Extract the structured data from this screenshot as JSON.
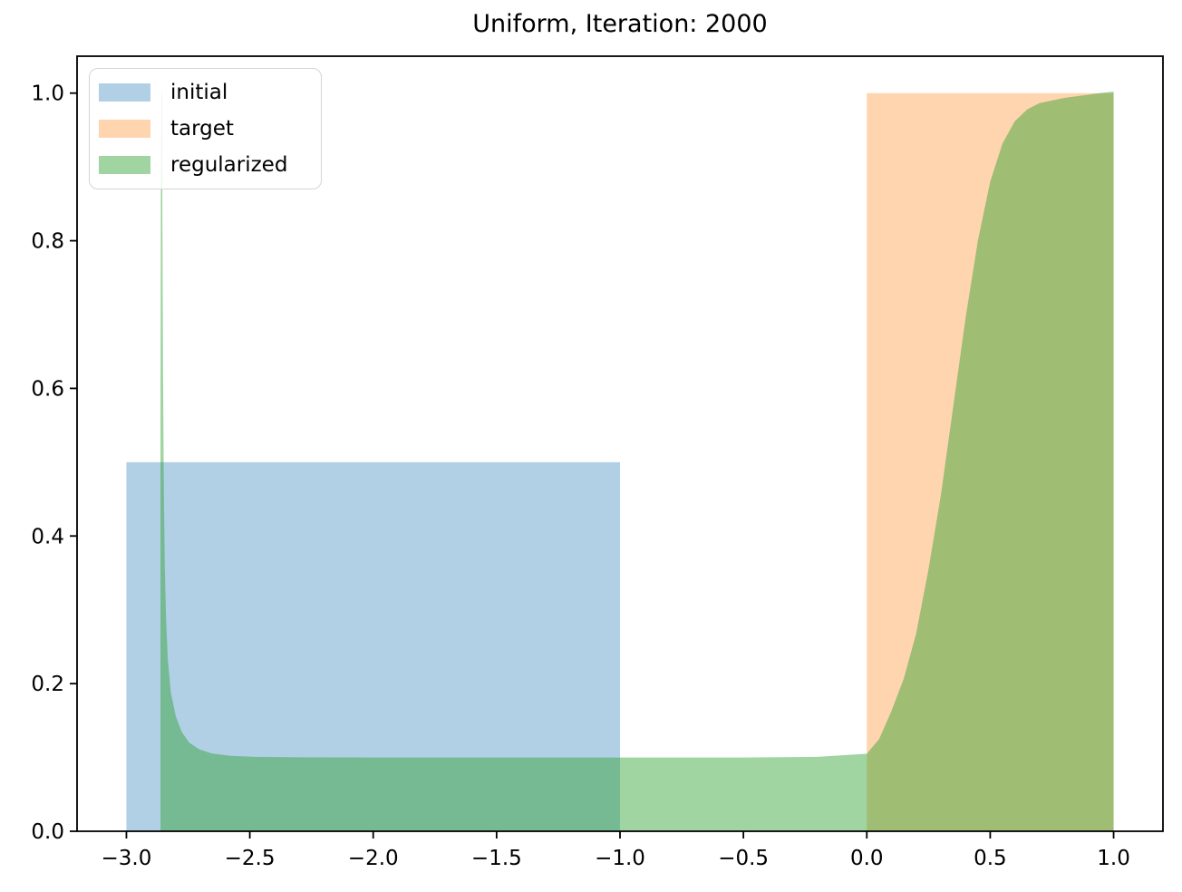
{
  "chart_data": {
    "type": "area",
    "title": "Uniform, Iteration: 2000",
    "xlabel": "",
    "ylabel": "",
    "xlim": [
      -3.2,
      1.2
    ],
    "ylim": [
      0.0,
      1.05
    ],
    "x_ticks": [
      -3.0,
      -2.5,
      -2.0,
      -1.5,
      -1.0,
      -0.5,
      0.0,
      0.5,
      1.0
    ],
    "x_tick_labels": [
      "−3.0",
      "−2.5",
      "−2.0",
      "−1.5",
      "−1.0",
      "−0.5",
      "0.0",
      "0.5",
      "1.0"
    ],
    "y_ticks": [
      0.0,
      0.2,
      0.4,
      0.6,
      0.8,
      1.0
    ],
    "y_tick_labels": [
      "0.0",
      "0.2",
      "0.4",
      "0.6",
      "0.8",
      "1.0"
    ],
    "grid": false,
    "legend_position": "upper-left",
    "axis_color": "#000000",
    "series": [
      {
        "name": "initial",
        "base_color": "#1f77b4",
        "fill": "rgba(31,119,180,0.35)",
        "points": [
          [
            -3.0,
            0.0
          ],
          [
            -3.0,
            0.5
          ],
          [
            -1.0,
            0.5
          ],
          [
            -1.0,
            0.0
          ]
        ]
      },
      {
        "name": "target",
        "base_color": "#ff7f0e",
        "fill": "rgba(255,127,14,0.33)",
        "points": [
          [
            0.0,
            0.0
          ],
          [
            0.0,
            1.0
          ],
          [
            1.0,
            1.0
          ],
          [
            1.0,
            0.0
          ]
        ]
      },
      {
        "name": "regularized",
        "base_color": "#2ca02c",
        "fill": "rgba(44,160,44,0.45)",
        "points": [
          [
            -2.862,
            0.0
          ],
          [
            -2.862,
            0.55
          ],
          [
            -2.8605,
            0.85
          ],
          [
            -2.8585,
            1.003
          ],
          [
            -2.856,
            1.003
          ],
          [
            -2.854,
            0.82
          ],
          [
            -2.8515,
            0.62
          ],
          [
            -2.8485,
            0.47
          ],
          [
            -2.8445,
            0.36
          ],
          [
            -2.8395,
            0.29
          ],
          [
            -2.832,
            0.232
          ],
          [
            -2.82,
            0.188
          ],
          [
            -2.8,
            0.156
          ],
          [
            -2.775,
            0.134
          ],
          [
            -2.745,
            0.12
          ],
          [
            -2.705,
            0.111
          ],
          [
            -2.655,
            0.1055
          ],
          [
            -2.58,
            0.1022
          ],
          [
            -2.48,
            0.1008
          ],
          [
            -2.3,
            0.1002
          ],
          [
            -2.0,
            0.1
          ],
          [
            -1.5,
            0.1
          ],
          [
            -1.0,
            0.1
          ],
          [
            -0.5,
            0.1
          ],
          [
            -0.2,
            0.1008
          ],
          [
            0.0,
            0.105
          ],
          [
            0.05,
            0.125
          ],
          [
            0.1,
            0.163
          ],
          [
            0.15,
            0.207
          ],
          [
            0.2,
            0.268
          ],
          [
            0.25,
            0.355
          ],
          [
            0.3,
            0.455
          ],
          [
            0.35,
            0.575
          ],
          [
            0.4,
            0.695
          ],
          [
            0.45,
            0.8
          ],
          [
            0.5,
            0.88
          ],
          [
            0.55,
            0.932
          ],
          [
            0.6,
            0.962
          ],
          [
            0.65,
            0.978
          ],
          [
            0.7,
            0.9865
          ],
          [
            0.8,
            0.9935
          ],
          [
            0.9,
            0.998
          ],
          [
            0.97,
            1.001
          ],
          [
            1.0,
            1.002
          ],
          [
            1.0,
            0.0
          ]
        ]
      }
    ]
  }
}
